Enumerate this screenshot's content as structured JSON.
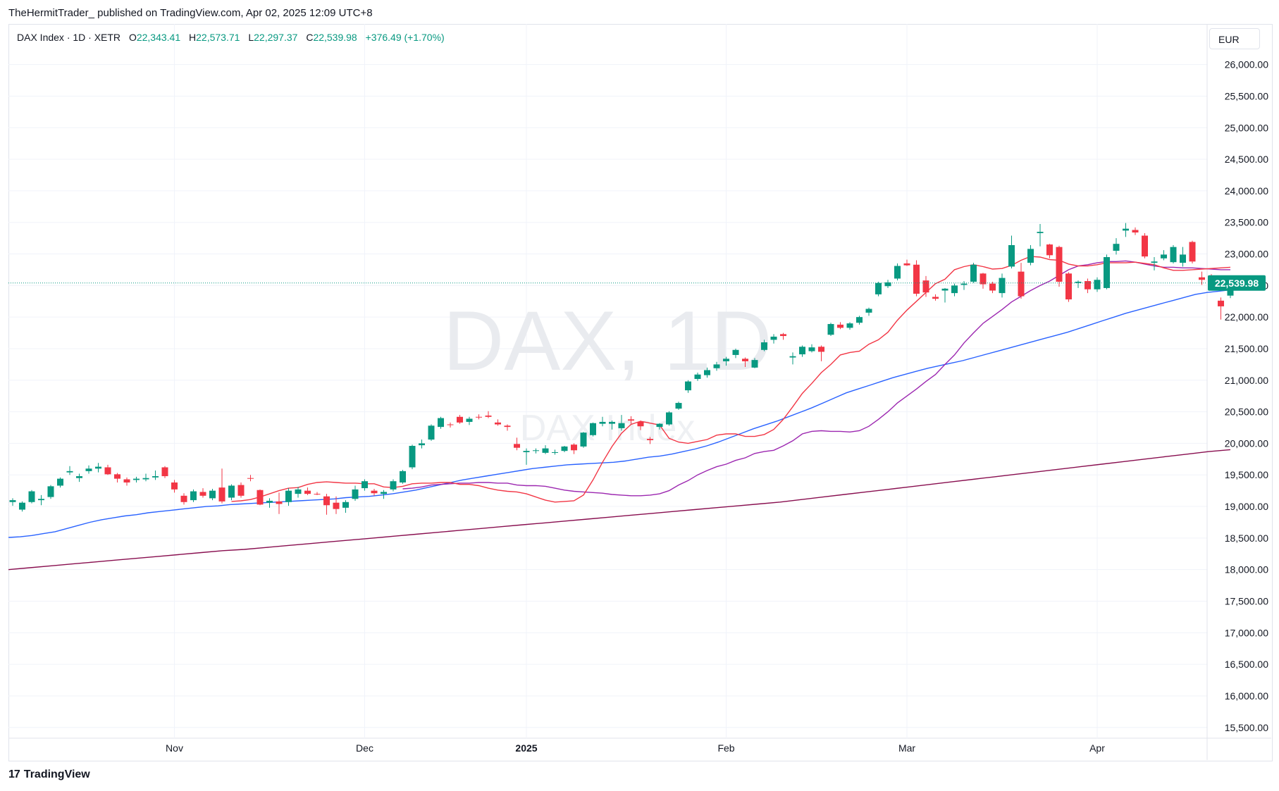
{
  "publisher": "TheHermitTrader_ published on TradingView.com, Apr 02, 2025 12:09 UTC+8",
  "legend": {
    "symbol": "DAX Index · 1D · XETR",
    "o_label": "O",
    "o": "22,343.41",
    "h_label": "H",
    "h": "22,573.71",
    "l_label": "L",
    "l": "22,297.37",
    "c_label": "C",
    "c": "22,539.98",
    "change": "+376.49 (+1.70%)"
  },
  "currency": "EUR",
  "watermark": {
    "main": "DAX, 1D",
    "sub": "DAX Index"
  },
  "last_price_label": "22,539.98",
  "footer": {
    "brand": "TradingView",
    "mark": "17"
  },
  "colors": {
    "up": "#089981",
    "down": "#f23645",
    "ma_fast": "#f23645",
    "ma_mid": "#9c27b0",
    "ma_50": "#2962ff",
    "ma_200": "#880e4f",
    "last_line": "#089981"
  },
  "chart_data": {
    "type": "candlestick",
    "title": "DAX Index · 1D · XETR",
    "y_axis_labels": [
      "26,000.00",
      "25,500.00",
      "25,000.00",
      "24,500.00",
      "24,000.00",
      "23,500.00",
      "23,000.00",
      "22,500.00",
      "22,000.00",
      "21,500.00",
      "21,000.00",
      "20,500.00",
      "20,000.00",
      "19,500.00",
      "19,000.00",
      "18,500.00",
      "18,000.00",
      "17,500.00",
      "17,000.00",
      "16,500.00",
      "16,000.00",
      "15,500.00"
    ],
    "y_ticks": [
      26000,
      25500,
      25000,
      24500,
      24000,
      23500,
      23000,
      22500,
      22000,
      21500,
      21000,
      20500,
      20000,
      19500,
      19000,
      18500,
      18000,
      17500,
      17000,
      16500,
      16000,
      15500
    ],
    "ylim": [
      15300,
      26450
    ],
    "x_axis_labels": [
      {
        "label": "Nov",
        "index": 17,
        "bold": false
      },
      {
        "label": "Dec",
        "index": 37,
        "bold": false
      },
      {
        "label": "2025",
        "index": 54,
        "bold": true
      },
      {
        "label": "Feb",
        "index": 75,
        "bold": false
      },
      {
        "label": "Mar",
        "index": 94,
        "bold": false
      },
      {
        "label": "Apr",
        "index": 114,
        "bold": false
      }
    ],
    "candles": [
      [
        19070,
        19130,
        19010,
        19100
      ],
      [
        18950,
        19080,
        18920,
        19060
      ],
      [
        19070,
        19260,
        19050,
        19240
      ],
      [
        19100,
        19180,
        19020,
        19120
      ],
      [
        19150,
        19340,
        19120,
        19320
      ],
      [
        19330,
        19460,
        19300,
        19440
      ],
      [
        19540,
        19640,
        19500,
        19560
      ],
      [
        19450,
        19520,
        19390,
        19480
      ],
      [
        19560,
        19650,
        19520,
        19600
      ],
      [
        19600,
        19690,
        19540,
        19630
      ],
      [
        19620,
        19660,
        19500,
        19510
      ],
      [
        19510,
        19530,
        19380,
        19440
      ],
      [
        19430,
        19460,
        19330,
        19380
      ],
      [
        19420,
        19470,
        19380,
        19440
      ],
      [
        19430,
        19520,
        19400,
        19450
      ],
      [
        19460,
        19570,
        19420,
        19480
      ],
      [
        19620,
        19640,
        19450,
        19480
      ],
      [
        19380,
        19420,
        19220,
        19270
      ],
      [
        19170,
        19210,
        19030,
        19070
      ],
      [
        19100,
        19270,
        19070,
        19240
      ],
      [
        19230,
        19290,
        19140,
        19170
      ],
      [
        19130,
        19280,
        19100,
        19250
      ],
      [
        19300,
        19600,
        19050,
        19080
      ],
      [
        19140,
        19350,
        19100,
        19330
      ],
      [
        19340,
        19380,
        19140,
        19170
      ],
      [
        19450,
        19500,
        19400,
        19440
      ],
      [
        19260,
        19270,
        19020,
        19030
      ],
      [
        19060,
        19130,
        18980,
        19090
      ],
      [
        19080,
        19220,
        18880,
        19040
      ],
      [
        19070,
        19290,
        19010,
        19250
      ],
      [
        19200,
        19310,
        19140,
        19270
      ],
      [
        19250,
        19300,
        19180,
        19200
      ],
      [
        19200,
        19230,
        19180,
        19190
      ],
      [
        19160,
        19200,
        18870,
        19020
      ],
      [
        19060,
        19160,
        18880,
        18960
      ],
      [
        18980,
        19100,
        18900,
        19070
      ],
      [
        19120,
        19330,
        19090,
        19270
      ],
      [
        19290,
        19430,
        19250,
        19400
      ],
      [
        19250,
        19280,
        19170,
        19210
      ],
      [
        19200,
        19260,
        19120,
        19230
      ],
      [
        19270,
        19430,
        19240,
        19400
      ],
      [
        19380,
        19580,
        19360,
        19560
      ],
      [
        19620,
        19980,
        19590,
        19960
      ],
      [
        19970,
        20060,
        19920,
        20000
      ],
      [
        20060,
        20300,
        20040,
        20280
      ],
      [
        20260,
        20420,
        20230,
        20400
      ],
      [
        20300,
        20330,
        20250,
        20290
      ],
      [
        20420,
        20450,
        20310,
        20330
      ],
      [
        20340,
        20420,
        20290,
        20390
      ],
      [
        20420,
        20460,
        20380,
        20410
      ],
      [
        20440,
        20510,
        20400,
        20420
      ],
      [
        20330,
        20380,
        20280,
        20300
      ],
      [
        20280,
        20300,
        20200,
        20260
      ],
      [
        19990,
        20090,
        19890,
        19930
      ],
      [
        19860,
        19920,
        19660,
        19880
      ],
      [
        19880,
        19920,
        19840,
        19890
      ],
      [
        19850,
        19970,
        19830,
        19920
      ],
      [
        19850,
        19900,
        19820,
        19860
      ],
      [
        19880,
        19960,
        19860,
        19950
      ],
      [
        19980,
        20000,
        19830,
        19890
      ],
      [
        19950,
        20180,
        19930,
        20170
      ],
      [
        20130,
        20330,
        20110,
        20320
      ],
      [
        20310,
        20420,
        20270,
        20340
      ],
      [
        20310,
        20360,
        20220,
        20340
      ],
      [
        20240,
        20450,
        20200,
        20320
      ],
      [
        20380,
        20430,
        20310,
        20360
      ],
      [
        20340,
        20360,
        20210,
        20270
      ],
      [
        20070,
        20100,
        19990,
        20050
      ],
      [
        20260,
        20320,
        20220,
        20310
      ],
      [
        20300,
        20510,
        20280,
        20490
      ],
      [
        20550,
        20660,
        20530,
        20640
      ],
      [
        20840,
        21000,
        20800,
        20980
      ],
      [
        21020,
        21120,
        20990,
        21090
      ],
      [
        21080,
        21200,
        21040,
        21160
      ],
      [
        21190,
        21290,
        21150,
        21250
      ],
      [
        21300,
        21370,
        21230,
        21340
      ],
      [
        21400,
        21500,
        21350,
        21480
      ],
      [
        21340,
        21360,
        21210,
        21300
      ],
      [
        21200,
        21350,
        21190,
        21320
      ],
      [
        21480,
        21640,
        21460,
        21600
      ],
      [
        21640,
        21730,
        21580,
        21690
      ],
      [
        21730,
        21750,
        21640,
        21700
      ],
      [
        21360,
        21440,
        21250,
        21380
      ],
      [
        21410,
        21550,
        21370,
        21530
      ],
      [
        21460,
        21570,
        21440,
        21520
      ],
      [
        21530,
        21550,
        21300,
        21450
      ],
      [
        21720,
        21910,
        21700,
        21890
      ],
      [
        21880,
        21920,
        21810,
        21830
      ],
      [
        21830,
        21920,
        21800,
        21900
      ],
      [
        21910,
        22020,
        21880,
        22000
      ],
      [
        22070,
        22150,
        22020,
        22130
      ],
      [
        22360,
        22560,
        22330,
        22540
      ],
      [
        22490,
        22590,
        22460,
        22550
      ],
      [
        22610,
        22850,
        22580,
        22810
      ],
      [
        22850,
        22910,
        22810,
        22820
      ],
      [
        22830,
        22900,
        22330,
        22370
      ],
      [
        22580,
        22650,
        22320,
        22390
      ],
      [
        22320,
        22360,
        22260,
        22290
      ],
      [
        22420,
        22460,
        22230,
        22450
      ],
      [
        22380,
        22530,
        22330,
        22500
      ],
      [
        22510,
        22570,
        22430,
        22530
      ],
      [
        22560,
        22860,
        22540,
        22830
      ],
      [
        22690,
        22700,
        22450,
        22520
      ],
      [
        22530,
        22560,
        22380,
        22420
      ],
      [
        22380,
        22690,
        22310,
        22620
      ],
      [
        22800,
        23290,
        22770,
        23140
      ],
      [
        22720,
        22860,
        22290,
        22330
      ],
      [
        22860,
        23140,
        22820,
        23080
      ],
      [
        23330,
        23475,
        23120,
        23350
      ],
      [
        23150,
        23160,
        22930,
        22980
      ],
      [
        23110,
        23130,
        22480,
        22560
      ],
      [
        22690,
        22710,
        22240,
        22280
      ],
      [
        22540,
        22580,
        22460,
        22560
      ],
      [
        22570,
        22610,
        22380,
        22440
      ],
      [
        22440,
        22630,
        22400,
        22590
      ],
      [
        22460,
        22990,
        22440,
        22950
      ],
      [
        23050,
        23250,
        22990,
        23160
      ],
      [
        23370,
        23490,
        23270,
        23400
      ],
      [
        23380,
        23420,
        23300,
        23340
      ],
      [
        23290,
        23330,
        22930,
        22960
      ],
      [
        22860,
        22950,
        22740,
        22880
      ],
      [
        22930,
        23060,
        22900,
        22990
      ],
      [
        22870,
        23140,
        22850,
        23110
      ],
      [
        22860,
        23110,
        22800,
        22990
      ],
      [
        23190,
        23210,
        22850,
        22880
      ],
      [
        22630,
        22720,
        22510,
        22590
      ],
      [
        22630,
        22680,
        22440,
        22520
      ],
      [
        22260,
        22310,
        21960,
        22170
      ],
      [
        22340,
        22570,
        22300,
        22540
      ]
    ],
    "ma_fast": [
      19080,
      19090,
      19110,
      19150,
      19200,
      19250,
      19290,
      19300,
      19350,
      19380,
      19390,
      19380,
      19370,
      19370,
      19360,
      19360,
      19310,
      19300,
      19320,
      19360,
      19370,
      19370,
      19380,
      19380,
      19350,
      19350,
      19330,
      19290,
      19260,
      19240,
      19230,
      19200,
      19150,
      19100,
      19070,
      19080,
      19090,
      19180,
      19420,
      19700,
      19950,
      20160,
      20300,
      20350,
      20320,
      20290,
      20080,
      20020,
      20000,
      20030,
      20060,
      20130,
      20150,
      20150,
      20110,
      20110,
      20140,
      20220,
      20380,
      20580,
      20790,
      20950,
      21120,
      21250,
      21400,
      21440,
      21460,
      21570,
      21640,
      21760,
      21950,
      22110,
      22250,
      22390,
      22530,
      22600,
      22750,
      22800,
      22830,
      22800,
      22760,
      22770,
      22820,
      22900,
      22960,
      22950,
      22910,
      22900,
      22840,
      22810,
      22810,
      22830,
      22860,
      22860,
      22860,
      22870,
      22850,
      22830,
      22780,
      22740,
      22740,
      22750,
      22760,
      22770,
      22780,
      22790
    ],
    "ma_mid": [
      19280,
      19290,
      19310,
      19340,
      19350,
      19360,
      19370,
      19370,
      19380,
      19380,
      19370,
      19370,
      19340,
      19330,
      19330,
      19320,
      19290,
      19260,
      19240,
      19230,
      19220,
      19210,
      19190,
      19180,
      19170,
      19170,
      19180,
      19200,
      19250,
      19340,
      19410,
      19500,
      19570,
      19630,
      19670,
      19730,
      19770,
      19840,
      19870,
      19890,
      19960,
      20040,
      20150,
      20190,
      20200,
      20190,
      20190,
      20180,
      20200,
      20270,
      20380,
      20500,
      20640,
      20750,
      20860,
      20980,
      21090,
      21250,
      21400,
      21590,
      21750,
      21900,
      22010,
      22120,
      22240,
      22330,
      22420,
      22500,
      22570,
      22660,
      22750,
      22810,
      22830,
      22860,
      22880,
      22880,
      22890,
      22870,
      22840,
      22810,
      22790,
      22790,
      22780,
      22780,
      22770,
      22760,
      22750,
      22750
    ],
    "ma_50": [
      18510,
      18520,
      18540,
      18570,
      18600,
      18650,
      18700,
      18750,
      18790,
      18820,
      18850,
      18870,
      18900,
      18920,
      18940,
      18960,
      18980,
      19000,
      19010,
      19030,
      19040,
      19050,
      19060,
      19070,
      19080,
      19090,
      19100,
      19110,
      19120,
      19140,
      19150,
      19160,
      19180,
      19200,
      19230,
      19260,
      19300,
      19340,
      19380,
      19420,
      19450,
      19480,
      19510,
      19540,
      19570,
      19600,
      19620,
      19640,
      19660,
      19670,
      19680,
      19690,
      19700,
      19720,
      19750,
      19780,
      19800,
      19830,
      19870,
      19910,
      19960,
      20020,
      20090,
      20160,
      20230,
      20290,
      20350,
      20420,
      20490,
      20560,
      20640,
      20720,
      20800,
      20860,
      20920,
      20980,
      21040,
      21090,
      21140,
      21190,
      21230,
      21270,
      21310,
      21360,
      21410,
      21460,
      21510,
      21560,
      21610,
      21660,
      21710,
      21760,
      21820,
      21880,
      21940,
      22000,
      22060,
      22110,
      22160,
      22210,
      22260,
      22310,
      22360,
      22390,
      22410,
      22430
    ],
    "ma_200": [
      18000,
      18030,
      18060,
      18090,
      18120,
      18150,
      18180,
      18210,
      18240,
      18270,
      18300,
      18320,
      18350,
      18380,
      18410,
      18440,
      18470,
      18500,
      18530,
      18560,
      18590,
      18620,
      18650,
      18680,
      18710,
      18740,
      18770,
      18800,
      18830,
      18860,
      18890,
      18920,
      18950,
      18980,
      19010,
      19040,
      19070,
      19110,
      19150,
      19190,
      19230,
      19270,
      19310,
      19350,
      19390,
      19430,
      19470,
      19510,
      19550,
      19590,
      19630,
      19670,
      19710,
      19750,
      19790,
      19830,
      19870,
      19900
    ]
  }
}
